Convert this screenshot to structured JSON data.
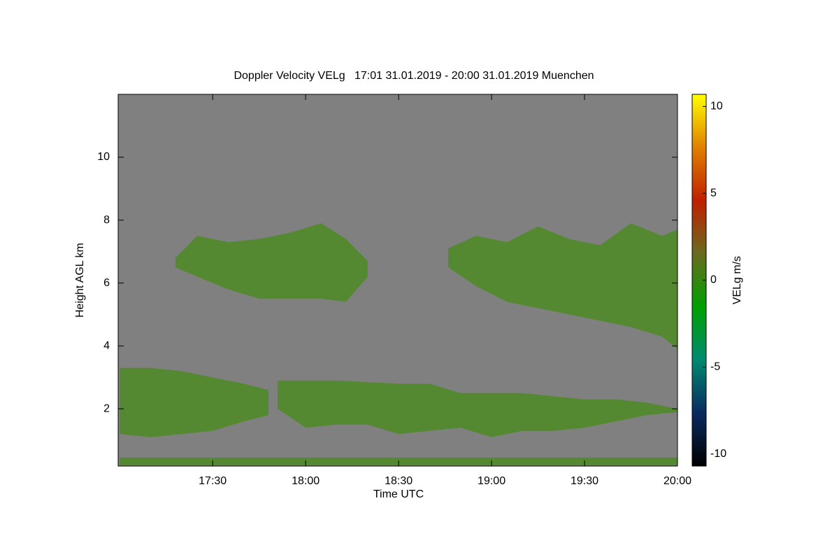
{
  "chart_data": {
    "type": "time-height",
    "title": "Doppler Velocity VELg   17:01 31.01.2019 - 20:00 31.01.2019 Muenchen",
    "xlabel": "Time UTC",
    "ylabel": "Height AGL km",
    "xlim": [
      1019.5,
      1200
    ],
    "xticks": [
      {
        "value": 1050,
        "label": "17:30"
      },
      {
        "value": 1080,
        "label": "18:00"
      },
      {
        "value": 1110,
        "label": "18:30"
      },
      {
        "value": 1140,
        "label": "19:00"
      },
      {
        "value": 1170,
        "label": "19:30"
      },
      {
        "value": 1200,
        "label": "20:00"
      }
    ],
    "ylim": [
      0.18,
      12
    ],
    "yticks": [
      2,
      4,
      6,
      8,
      10
    ],
    "background": "#808080",
    "color": "#4f8a28",
    "layers": [
      {
        "x": [
          1020,
          1030,
          1040,
          1050,
          1060,
          1068
        ],
        "top": [
          3.3,
          3.3,
          3.2,
          3.0,
          2.8,
          2.6
        ],
        "base": [
          1.2,
          1.1,
          1.2,
          1.3,
          1.6,
          1.8
        ]
      },
      {
        "x": [
          1071,
          1080,
          1090,
          1100,
          1110,
          1120,
          1130,
          1140,
          1150,
          1160,
          1170,
          1180,
          1190,
          1200
        ],
        "top": [
          2.9,
          2.9,
          2.9,
          2.85,
          2.8,
          2.8,
          2.5,
          2.5,
          2.5,
          2.4,
          2.3,
          2.3,
          2.2,
          2.0
        ],
        "base": [
          2.0,
          1.4,
          1.5,
          1.5,
          1.2,
          1.3,
          1.4,
          1.1,
          1.3,
          1.3,
          1.4,
          1.6,
          1.8,
          1.9
        ]
      },
      {
        "x": [
          1038,
          1045,
          1055,
          1065,
          1075,
          1085,
          1093,
          1100
        ],
        "top": [
          6.8,
          7.5,
          7.3,
          7.4,
          7.6,
          7.9,
          7.4,
          6.7
        ],
        "base": [
          6.5,
          6.2,
          5.8,
          5.5,
          5.5,
          5.5,
          5.4,
          6.2
        ]
      },
      {
        "x": [
          1126,
          1135,
          1145,
          1155,
          1165,
          1175,
          1185,
          1195,
          1200
        ],
        "top": [
          7.1,
          7.5,
          7.3,
          7.8,
          7.4,
          7.2,
          7.9,
          7.5,
          7.7
        ],
        "base": [
          6.5,
          5.9,
          5.4,
          5.2,
          5.0,
          4.8,
          4.6,
          4.3,
          3.9
        ]
      },
      {
        "x": [
          1020,
          1200
        ],
        "top": [
          0.45,
          0.45
        ],
        "base": [
          0.2,
          0.2
        ]
      }
    ],
    "colorbar": {
      "label": "VELg m/s",
      "zlim": [
        -10.7,
        10.7
      ],
      "zticks": [
        -10,
        -5,
        0,
        5,
        10
      ],
      "colormap": [
        "#000000",
        "#0a2a60",
        "#008a70",
        "#00a000",
        "#6a6a20",
        "#c02000",
        "#e08000",
        "#ffff00"
      ]
    }
  }
}
